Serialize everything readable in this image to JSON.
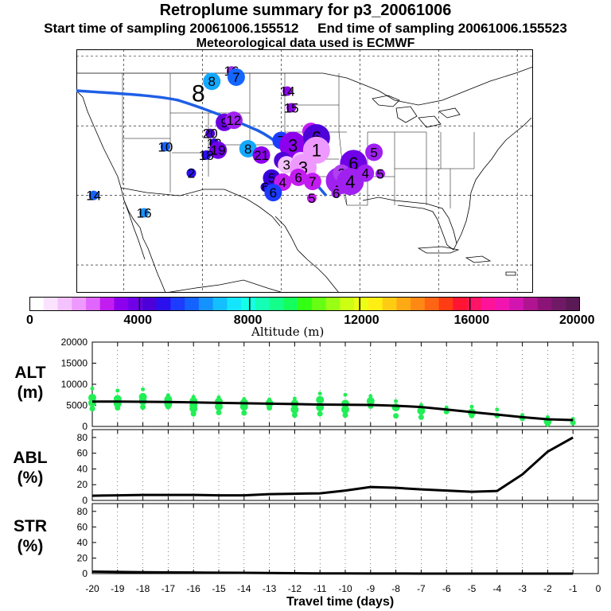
{
  "header": {
    "title": "Retroplume summary for p3_20061006",
    "start_label": "Start time of sampling 20061006.155512",
    "end_label": "End time of sampling 20061006.155523",
    "met_label": "Meteorological data used is ECMWF"
  },
  "colors": {
    "trajectory": "#1f5fe6",
    "alt_points": "#22ee55",
    "line": "#000000"
  },
  "colorbar": {
    "ticks": [
      "0",
      "4000",
      "8000",
      "12000",
      "16000",
      "20000"
    ],
    "label": "Altitude (m)",
    "colors": [
      "#ffffff",
      "#fbe3ff",
      "#f4c2ff",
      "#ee99ff",
      "#e066ff",
      "#c31cf1",
      "#8d00ee",
      "#7000e8",
      "#4d00d8",
      "#2b10ee",
      "#1c3cff",
      "#1462ff",
      "#1492ff",
      "#14bfff",
      "#14e6ff",
      "#14ffe6",
      "#14ffb5",
      "#14ff8a",
      "#14ff5c",
      "#33ff14",
      "#66ff14",
      "#99ff14",
      "#ccff14",
      "#eeff14",
      "#ffee14",
      "#ffcc14",
      "#ffaa14",
      "#ff8814",
      "#ff6414",
      "#ff3c14",
      "#ff1432",
      "#ff1466",
      "#ff1499",
      "#f014b0",
      "#d214b0",
      "#b01490",
      "#8c1478",
      "#701a66",
      "#5a1a55"
    ]
  },
  "map": {
    "clusters": [
      {
        "label": "16",
        "color": "#9b2cf0",
        "lon": -106.3,
        "lat": 47.9,
        "size": "small"
      },
      {
        "label": "8",
        "color": "#14a8ff",
        "lon": -108.8,
        "lat": 46.4,
        "size": "medium"
      },
      {
        "label": "7",
        "color": "#1466ff",
        "lon": -105.7,
        "lat": 47.0,
        "size": "medium"
      },
      {
        "label": "14",
        "color": "#8d00ee",
        "lon": -99.2,
        "lat": 45.0,
        "size": "small"
      },
      {
        "label": "15",
        "color": "#8d00ee",
        "lon": -98.7,
        "lat": 42.6,
        "size": "small"
      },
      {
        "label": "8",
        "color": "#000000",
        "lon": -110.5,
        "lat": 44.7,
        "size": "none"
      },
      {
        "label": "9",
        "color": "#6a00e0",
        "lon": -107.2,
        "lat": 40.5,
        "size": "medium"
      },
      {
        "label": "12",
        "color": "#a020f0",
        "lon": -106.0,
        "lat": 40.8,
        "size": "medium"
      },
      {
        "label": "20",
        "color": "#4d00d8",
        "lon": -109.0,
        "lat": 38.9,
        "size": "small"
      },
      {
        "label": "13",
        "color": "#3a00e0",
        "lon": -108.5,
        "lat": 37.5,
        "size": "small"
      },
      {
        "label": "19",
        "color": "#7000e8",
        "lon": -108.0,
        "lat": 36.5,
        "size": "medium"
      },
      {
        "label": "10",
        "color": "#1462ff",
        "lon": -114.7,
        "lat": 37.0,
        "size": "small"
      },
      {
        "label": "18",
        "color": "#2b10ee",
        "lon": -109.5,
        "lat": 35.8,
        "size": "small"
      },
      {
        "label": "8",
        "color": "#14a8ff",
        "lon": -104.2,
        "lat": 36.7,
        "size": "medium"
      },
      {
        "label": "21",
        "color": "#8d00ee",
        "lon": -102.5,
        "lat": 35.8,
        "size": "medium"
      },
      {
        "label": "7",
        "color": "#1c3cff",
        "lon": -100.0,
        "lat": 37.9,
        "size": "medium"
      },
      {
        "label": "3",
        "color": "#8d00ee",
        "lon": -98.5,
        "lat": 37.2,
        "size": "large"
      },
      {
        "label": "2",
        "color": "#c31cf1",
        "lon": -96.2,
        "lat": 39.2,
        "size": "medium"
      },
      {
        "label": "6",
        "color": "#4d00d8",
        "lon": -95.5,
        "lat": 38.3,
        "size": "large"
      },
      {
        "label": "4",
        "color": "#4d00d8",
        "lon": -99.8,
        "lat": 35.0,
        "size": "medium"
      },
      {
        "label": "3",
        "color": "#f4c2ff",
        "lon": -99.3,
        "lat": 34.4,
        "size": "medium"
      },
      {
        "label": "2",
        "color": "#f4c2ff",
        "lon": -97.5,
        "lat": 35.0,
        "size": "medium"
      },
      {
        "label": "1",
        "color": "#ee99ff",
        "lon": -95.5,
        "lat": 36.5,
        "size": "large"
      },
      {
        "label": "3",
        "color": "#ee99ff",
        "lon": -97.2,
        "lat": 34.0,
        "size": "large"
      },
      {
        "label": "6",
        "color": "#7000e8",
        "lon": -90.8,
        "lat": 34.6,
        "size": "large"
      },
      {
        "label": "5",
        "color": "#a020f0",
        "lon": -88.2,
        "lat": 36.2,
        "size": "medium"
      },
      {
        "label": "4",
        "color": "#a020f0",
        "lon": -89.3,
        "lat": 33.2,
        "size": "medium"
      },
      {
        "label": "5",
        "color": "#a020f0",
        "lon": -87.4,
        "lat": 33.1,
        "size": "small"
      },
      {
        "label": "5",
        "color": "#3a00e0",
        "lon": -101.2,
        "lat": 32.5,
        "size": "medium"
      },
      {
        "label": "4",
        "color": "#c31cf1",
        "lon": -99.8,
        "lat": 31.9,
        "size": "medium"
      },
      {
        "label": "6",
        "color": "#c31cf1",
        "lon": -97.8,
        "lat": 32.6,
        "size": "medium"
      },
      {
        "label": "7",
        "color": "#c31cf1",
        "lon": -96.0,
        "lat": 32.0,
        "size": "medium"
      },
      {
        "label": "1",
        "color": "#a020f0",
        "lon": -92.6,
        "lat": 32.1,
        "size": "large"
      },
      {
        "label": "3",
        "color": "#b040f0",
        "lon": -92.3,
        "lat": 33.2,
        "size": "medium"
      },
      {
        "label": "4",
        "color": "#a020f0",
        "lon": -91.2,
        "lat": 32.0,
        "size": "large"
      },
      {
        "label": "6",
        "color": "#2b10ee",
        "lon": -102.0,
        "lat": 31.2,
        "size": "small"
      },
      {
        "label": "6",
        "color": "#1c3cff",
        "lon": -101.0,
        "lat": 30.4,
        "size": "medium"
      },
      {
        "label": "2",
        "color": "#2b10ee",
        "lon": -111.4,
        "lat": 33.2,
        "size": "small"
      },
      {
        "label": "5",
        "color": "#c31cf1",
        "lon": -96.1,
        "lat": 29.6,
        "size": "small"
      },
      {
        "label": "6",
        "color": "#a020f0",
        "lon": -93.0,
        "lat": 30.3,
        "size": "small"
      },
      {
        "label": "14",
        "color": "#1462ff",
        "lon": -123.8,
        "lat": 30.0,
        "size": "small"
      },
      {
        "label": "16",
        "color": "#1492ff",
        "lon": -117.4,
        "lat": 27.5,
        "size": "small"
      }
    ]
  },
  "chart_data": {
    "type": "line",
    "x_title": "Travel time (days)",
    "x_ticks": [
      "-20",
      "-19",
      "-18",
      "-17",
      "-16",
      "-15",
      "-14",
      "-13",
      "-12",
      "-11",
      "-10",
      "-9",
      "-8",
      "-7",
      "-6",
      "-5",
      "-4",
      "-3",
      "-2",
      "-1",
      "0"
    ],
    "xlim": [
      -20,
      0
    ],
    "panels": [
      {
        "label": "ALT\n(m)",
        "label_line1": "ALT",
        "label_line2": "(m)",
        "ylim": [
          0,
          20000
        ],
        "y_ticks": [
          "0",
          "5000",
          "10000",
          "15000",
          "20000"
        ],
        "x": [
          -20,
          -19,
          -18,
          -17,
          -16,
          -15,
          -14,
          -13,
          -12,
          -11,
          -10,
          -9,
          -8,
          -7,
          -6,
          -5,
          -4,
          -3,
          -2,
          -1
        ],
        "line": [
          5900,
          5900,
          5850,
          5800,
          5700,
          5600,
          5500,
          5400,
          5300,
          5200,
          5150,
          5100,
          4900,
          4600,
          4000,
          3400,
          2800,
          2200,
          1700,
          1500
        ],
        "scatter": [
          {
            "x": -20,
            "y": [
              9000,
              6800,
              5600,
              4200
            ]
          },
          {
            "x": -19,
            "y": [
              8500,
              6500,
              5400,
              4400
            ]
          },
          {
            "x": -18,
            "y": [
              8800,
              7000,
              6000,
              4600
            ]
          },
          {
            "x": -17,
            "y": [
              7400,
              6400,
              5300,
              4700
            ]
          },
          {
            "x": -16,
            "y": [
              7000,
              6000,
              5000,
              4200,
              3000
            ]
          },
          {
            "x": -15,
            "y": [
              6900,
              5900,
              4700,
              3300
            ]
          },
          {
            "x": -14,
            "y": [
              6500,
              5600,
              4700,
              3200
            ]
          },
          {
            "x": -13,
            "y": [
              6400,
              5500,
              4400
            ]
          },
          {
            "x": -12,
            "y": [
              6600,
              5400,
              4000,
              2700
            ]
          },
          {
            "x": -11,
            "y": [
              7800,
              6300,
              4500,
              3000
            ]
          },
          {
            "x": -10,
            "y": [
              7500,
              5400,
              4000,
              2700
            ]
          },
          {
            "x": -9,
            "y": [
              7200,
              6000,
              4800
            ]
          },
          {
            "x": -8,
            "y": [
              6000,
              4500,
              2500
            ]
          },
          {
            "x": -7,
            "y": [
              5100,
              3700,
              2200
            ]
          },
          {
            "x": -6,
            "y": [
              4500,
              3500
            ]
          },
          {
            "x": -5,
            "y": [
              4700,
              3300,
              2600
            ]
          },
          {
            "x": -4,
            "y": [
              4000,
              2600
            ]
          },
          {
            "x": -3,
            "y": [
              2700,
              1900
            ]
          },
          {
            "x": -2,
            "y": [
              2200,
              1200,
              600
            ]
          },
          {
            "x": -1,
            "y": [
              1800,
              900
            ]
          }
        ]
      },
      {
        "label": "ABL\n(%)",
        "label_line1": "ABL",
        "label_line2": "(%)",
        "ylim": [
          0,
          90
        ],
        "y_ticks": [
          "0",
          "20",
          "40",
          "60",
          "80"
        ],
        "x": [
          -20,
          -19,
          -18,
          -17,
          -16,
          -15,
          -14,
          -13,
          -12,
          -11,
          -10,
          -9,
          -8,
          -7,
          -6,
          -5,
          -4,
          -3,
          -2,
          -1
        ],
        "line": [
          6,
          6.5,
          7,
          7,
          7,
          6.5,
          6.5,
          8,
          8.5,
          9,
          12.5,
          17,
          16,
          14,
          12.5,
          11,
          12,
          33,
          62,
          80
        ]
      },
      {
        "label": "STR\n(%)",
        "label_line1": "STR",
        "label_line2": "(%)",
        "ylim": [
          0,
          90
        ],
        "y_ticks": [
          "0",
          "20",
          "40",
          "60",
          "80"
        ],
        "x": [
          -20,
          -19,
          -18,
          -17,
          -16,
          -15,
          -14,
          -13,
          -12,
          -11,
          -10,
          -9,
          -8,
          -7,
          -6,
          -5,
          -4,
          -3,
          -2,
          -1
        ],
        "line": [
          2.5,
          2.2,
          1.8,
          1.5,
          1.4,
          1.2,
          1.0,
          0.8,
          0.5,
          0.3,
          0.2,
          0.1,
          0.1,
          0.05,
          0,
          0,
          0,
          0,
          0,
          0
        ]
      }
    ]
  }
}
